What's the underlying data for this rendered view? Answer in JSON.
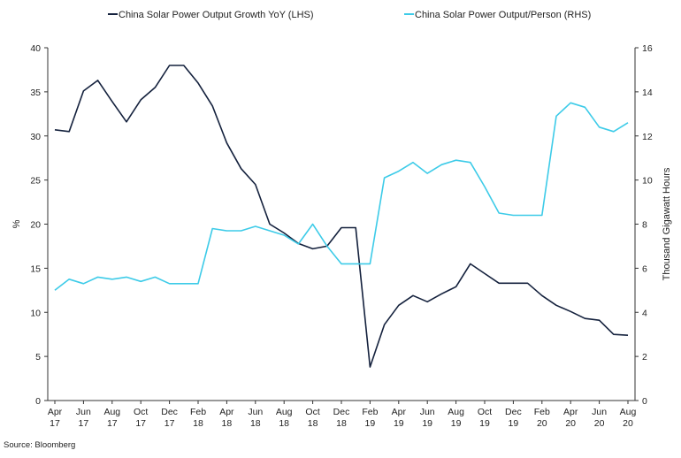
{
  "chart_data": {
    "type": "line",
    "title": "",
    "source": "Source: Bloomberg",
    "ylabel_left": "%",
    "ylabel_right": "Thousand Gigawatt Hours",
    "ylim_left": [
      0,
      40
    ],
    "ylim_right": [
      0,
      16
    ],
    "yticks_left": [
      "0",
      "5",
      "10",
      "15",
      "20",
      "25",
      "30",
      "35",
      "40"
    ],
    "yticks_right": [
      "0",
      "2",
      "4",
      "6",
      "8",
      "10",
      "12",
      "14",
      "16"
    ],
    "grid": false,
    "legend_position": "top",
    "x_tick_labels": [
      [
        "Apr",
        "17"
      ],
      [
        "Jun",
        "17"
      ],
      [
        "Aug",
        "17"
      ],
      [
        "Oct",
        "17"
      ],
      [
        "Dec",
        "17"
      ],
      [
        "Feb",
        "18"
      ],
      [
        "Apr",
        "18"
      ],
      [
        "Jun",
        "18"
      ],
      [
        "Aug",
        "18"
      ],
      [
        "Oct",
        "18"
      ],
      [
        "Dec",
        "18"
      ],
      [
        "Feb",
        "19"
      ],
      [
        "Apr",
        "19"
      ],
      [
        "Jun",
        "19"
      ],
      [
        "Aug",
        "19"
      ],
      [
        "Oct",
        "19"
      ],
      [
        "Dec",
        "19"
      ],
      [
        "Feb",
        "20"
      ],
      [
        "Apr",
        "20"
      ],
      [
        "Jun",
        "20"
      ],
      [
        "Aug",
        "20"
      ]
    ],
    "x": [
      "2017-04",
      "2017-05",
      "2017-06",
      "2017-07",
      "2017-08",
      "2017-09",
      "2017-10",
      "2017-11",
      "2017-12",
      "2018-01",
      "2018-02",
      "2018-03",
      "2018-04",
      "2018-05",
      "2018-06",
      "2018-07",
      "2018-08",
      "2018-09",
      "2018-10",
      "2018-11",
      "2018-12",
      "2019-01",
      "2019-02",
      "2019-03",
      "2019-04",
      "2019-05",
      "2019-06",
      "2019-07",
      "2019-08",
      "2019-09",
      "2019-10",
      "2019-11",
      "2019-12",
      "2020-01",
      "2020-02",
      "2020-03",
      "2020-04",
      "2020-05",
      "2020-06",
      "2020-07",
      "2020-08"
    ],
    "series": [
      {
        "name": "China Solar Power Output Growth YoY (LHS)",
        "axis": "left",
        "color": "#14213d",
        "values": [
          30.7,
          30.5,
          35.1,
          36.3,
          33.9,
          31.6,
          34.1,
          35.5,
          38.0,
          38.0,
          36.0,
          33.4,
          29.2,
          26.3,
          24.5,
          20.0,
          19.0,
          17.8,
          17.2,
          17.5,
          19.6,
          19.6,
          3.8,
          8.6,
          10.8,
          11.9,
          11.2,
          12.1,
          12.9,
          15.5,
          14.4,
          13.3,
          13.3,
          13.3,
          11.9,
          10.8,
          10.1,
          9.3,
          9.1,
          7.5,
          7.4
        ]
      },
      {
        "name": "China Solar Power Output/Person (RHS)",
        "axis": "right",
        "color": "#3dcbe8",
        "values": [
          5.0,
          5.5,
          5.3,
          5.6,
          5.5,
          5.6,
          5.4,
          5.6,
          5.3,
          5.3,
          5.3,
          7.8,
          7.7,
          7.7,
          7.9,
          7.7,
          7.5,
          7.1,
          8.0,
          7.0,
          6.2,
          6.2,
          6.2,
          10.1,
          10.4,
          10.8,
          10.3,
          10.7,
          10.9,
          10.8,
          9.7,
          8.5,
          8.4,
          8.4,
          8.4,
          12.9,
          13.5,
          13.3,
          12.4,
          12.2,
          12.6
        ]
      }
    ]
  }
}
